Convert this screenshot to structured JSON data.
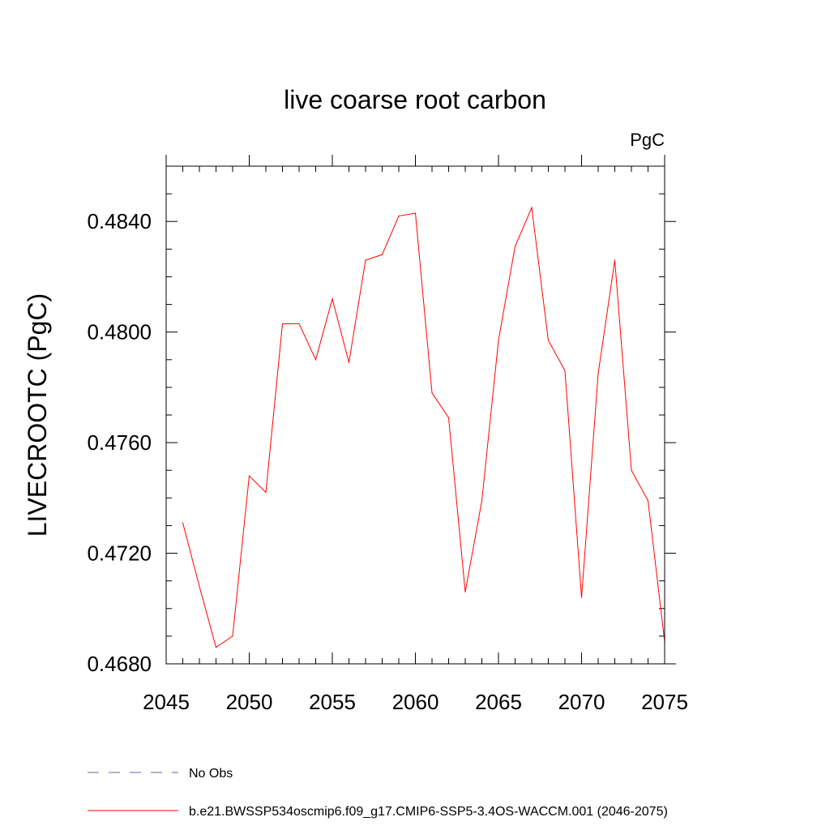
{
  "chart_data": {
    "type": "line",
    "title": "live coarse root carbon",
    "units_label": "PgC",
    "xlabel": "",
    "ylabel": "LIVECROOTC  (PgC)",
    "xlim": [
      2045,
      2075
    ],
    "ylim": [
      0.468,
      0.486
    ],
    "x_major_ticks": [
      2045,
      2050,
      2055,
      2060,
      2065,
      2070,
      2075
    ],
    "x_tick_labels": [
      "2045",
      "2050",
      "2055",
      "2060",
      "2065",
      "2070",
      "2075"
    ],
    "y_major_ticks": [
      0.468,
      0.472,
      0.476,
      0.48,
      0.484
    ],
    "y_tick_labels": [
      "0.4680",
      "0.4720",
      "0.4760",
      "0.4800",
      "0.4840"
    ],
    "x_minor_step": 1,
    "y_minor_step": 0.001,
    "series": [
      {
        "name": "b.e21.BWSSP534oscmip6.f09_g17.CMIP6-SSP5-3.4OS-WACCM.001 (2046-2075)",
        "color": "#ff0000",
        "x": [
          2046,
          2047,
          2048,
          2049,
          2050,
          2051,
          2052,
          2053,
          2054,
          2055,
          2056,
          2057,
          2058,
          2059,
          2060,
          2061,
          2062,
          2063,
          2064,
          2065,
          2066,
          2067,
          2068,
          2069,
          2070,
          2071,
          2072,
          2073,
          2074,
          2075
        ],
        "values": [
          0.4731,
          0.4708,
          0.4686,
          0.469,
          0.4748,
          0.4742,
          0.4803,
          0.4803,
          0.479,
          0.4812,
          0.4789,
          0.4826,
          0.4828,
          0.4842,
          0.4843,
          0.4778,
          0.4769,
          0.4706,
          0.4739,
          0.4797,
          0.4831,
          0.4845,
          0.4797,
          0.4786,
          0.4704,
          0.4785,
          0.4826,
          0.475,
          0.4739,
          0.4688
        ]
      }
    ],
    "legend": {
      "placement": "bottom",
      "entries": [
        {
          "label": "No Obs",
          "style": "dashed",
          "color": "#6b5fb5"
        },
        {
          "label": "b.e21.BWSSP534oscmip6.f09_g17.CMIP6-SSP5-3.4OS-WACCM.001 (2046-2075)",
          "style": "solid",
          "color": "#ff0000"
        }
      ]
    }
  }
}
